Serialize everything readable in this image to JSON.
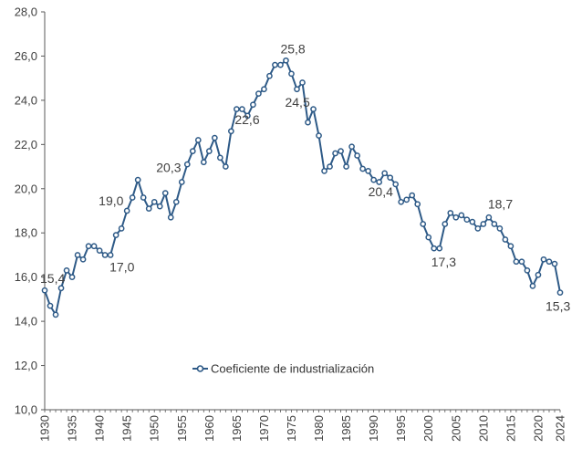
{
  "chart_data": {
    "type": "line",
    "title": "",
    "xlabel": "",
    "ylabel": "",
    "ylim": [
      10,
      28
    ],
    "xlim": [
      1930,
      2024
    ],
    "grid": false,
    "legend_position": "center",
    "y_ticks": [
      "10,0",
      "12,0",
      "14,0",
      "16,0",
      "18,0",
      "20,0",
      "22,0",
      "24,0",
      "26,0",
      "28,0"
    ],
    "x_ticks": [
      "1930",
      "1935",
      "1940",
      "1945",
      "1950",
      "1955",
      "1960",
      "1965",
      "1970",
      "1975",
      "1980",
      "1985",
      "1990",
      "1995",
      "2000",
      "2005",
      "2010",
      "2015",
      "2020",
      "2024"
    ],
    "series": [
      {
        "name": "Coeficiente de industrialización",
        "color": "#2e5a87",
        "x": [
          1930,
          1931,
          1932,
          1933,
          1934,
          1935,
          1936,
          1937,
          1938,
          1939,
          1940,
          1941,
          1942,
          1943,
          1944,
          1945,
          1946,
          1947,
          1948,
          1949,
          1950,
          1951,
          1952,
          1953,
          1954,
          1955,
          1956,
          1957,
          1958,
          1959,
          1960,
          1961,
          1962,
          1963,
          1964,
          1965,
          1966,
          1967,
          1968,
          1969,
          1970,
          1971,
          1972,
          1973,
          1974,
          1975,
          1976,
          1977,
          1978,
          1979,
          1980,
          1981,
          1982,
          1983,
          1984,
          1985,
          1986,
          1987,
          1988,
          1989,
          1990,
          1991,
          1992,
          1993,
          1994,
          1995,
          1996,
          1997,
          1998,
          1999,
          2000,
          2001,
          2002,
          2003,
          2004,
          2005,
          2006,
          2007,
          2008,
          2009,
          2010,
          2011,
          2012,
          2013,
          2014,
          2015,
          2016,
          2017,
          2018,
          2019,
          2020,
          2021,
          2022,
          2023,
          2024
        ],
        "values": [
          15.4,
          14.7,
          14.3,
          15.5,
          16.3,
          16.0,
          17.0,
          16.8,
          17.4,
          17.4,
          17.2,
          17.0,
          17.0,
          17.9,
          18.2,
          19.0,
          19.6,
          20.4,
          19.6,
          19.1,
          19.4,
          19.2,
          19.8,
          18.7,
          19.4,
          20.3,
          21.1,
          21.7,
          22.2,
          21.2,
          21.7,
          22.3,
          21.4,
          21.0,
          22.6,
          23.6,
          23.6,
          23.3,
          23.8,
          24.3,
          24.5,
          25.1,
          25.6,
          25.6,
          25.8,
          25.2,
          24.5,
          24.8,
          23.0,
          23.6,
          22.4,
          20.8,
          21.0,
          21.6,
          21.7,
          21.0,
          21.9,
          21.5,
          20.9,
          20.8,
          20.4,
          20.3,
          20.7,
          20.5,
          20.2,
          19.4,
          19.5,
          19.7,
          19.3,
          18.4,
          17.8,
          17.3,
          17.3,
          18.4,
          18.9,
          18.7,
          18.8,
          18.6,
          18.5,
          18.2,
          18.4,
          18.7,
          18.4,
          18.2,
          17.7,
          17.4,
          16.7,
          16.7,
          16.3,
          15.6,
          16.1,
          16.8,
          16.7,
          16.6,
          15.3
        ]
      }
    ],
    "annotations": [
      {
        "x": 1930,
        "text": "15,4"
      },
      {
        "x": 1942,
        "text": "17,0"
      },
      {
        "x": 1945,
        "text": "19,0"
      },
      {
        "x": 1955,
        "text": "20,3"
      },
      {
        "x": 1964,
        "text": "22,6"
      },
      {
        "x": 1974,
        "text": "25,8"
      },
      {
        "x": 1976,
        "text": "24,5"
      },
      {
        "x": 1990,
        "text": "20,4"
      },
      {
        "x": 2002,
        "text": "17,3"
      },
      {
        "x": 2011,
        "text": "18,7"
      },
      {
        "x": 2024,
        "text": "15,3"
      }
    ]
  }
}
